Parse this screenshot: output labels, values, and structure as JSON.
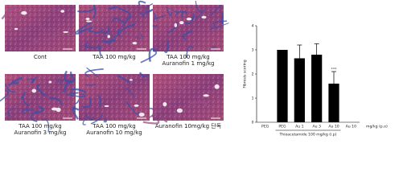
{
  "panels": [
    {
      "lines": [
        "Cont"
      ]
    },
    {
      "lines": [
        "TAA 100 mg/kg"
      ]
    },
    {
      "lines": [
        "TAA 100 mg/kg",
        "Auranofin 1 mg/kg"
      ]
    },
    {
      "lines": [
        "TAA 100 mg/kg",
        "Auranofin 3 mg/kg"
      ]
    },
    {
      "lines": [
        "TAA 100 mg/kg",
        "Auranofin 10 mg/kg"
      ]
    },
    {
      "lines": [
        "Auranofin 10mg/kg 단독"
      ]
    }
  ],
  "chart_data": {
    "type": "bar",
    "y_label": "Fibrosis scoring",
    "categories": [
      "PEG",
      "PEG",
      "Au 1",
      "Au 3",
      "Au 10",
      "Au 10"
    ],
    "values": [
      0,
      3.0,
      2.65,
      2.8,
      1.6,
      0
    ],
    "errors": [
      0,
      0,
      0.55,
      0.45,
      0.5,
      0
    ],
    "color": "#000000",
    "ylim": [
      0,
      4
    ],
    "yticks": [
      0,
      1,
      2,
      3,
      4
    ],
    "annotation": "***",
    "group_label": "Thioacetamide 100 mg/kg (i.p)",
    "x_label": "mg/kg (p.o)"
  }
}
